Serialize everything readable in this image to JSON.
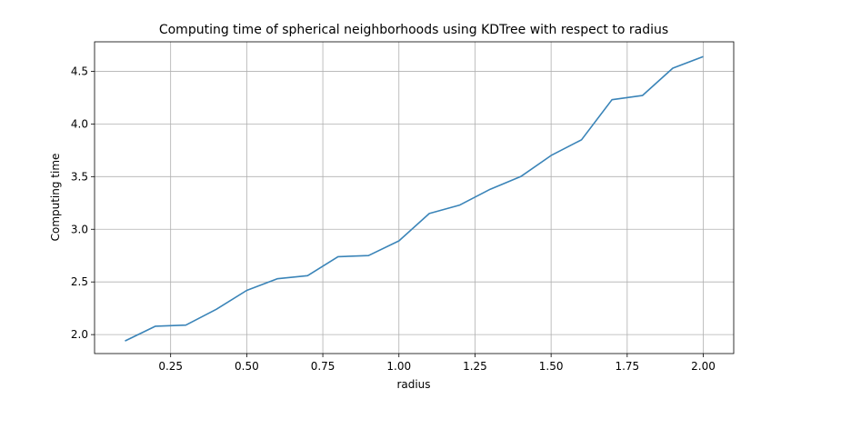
{
  "chart_data": {
    "type": "line",
    "title": "Computing time of spherical neighborhoods using KDTree with respect to radius",
    "xlabel": "radius",
    "ylabel": "Computing time",
    "xlim": [
      0.0,
      2.1
    ],
    "ylim": [
      1.82,
      4.78
    ],
    "grid": true,
    "xticks": [
      0.25,
      0.5,
      0.75,
      1.0,
      1.25,
      1.5,
      1.75,
      2.0
    ],
    "xtick_labels": [
      "0.25",
      "0.50",
      "0.75",
      "1.00",
      "1.25",
      "1.50",
      "1.75",
      "2.00"
    ],
    "yticks": [
      2.0,
      2.5,
      3.0,
      3.5,
      4.0,
      4.5
    ],
    "ytick_labels": [
      "2.0",
      "2.5",
      "3.0",
      "3.5",
      "4.0",
      "4.5"
    ],
    "line_color": "#3a84b8",
    "series": [
      {
        "x": [
          0.1,
          0.2,
          0.3,
          0.4,
          0.5,
          0.6,
          0.7,
          0.8,
          0.9,
          1.0,
          1.1,
          1.2,
          1.3,
          1.4,
          1.5,
          1.6,
          1.7,
          1.8,
          1.9,
          2.0
        ],
        "values": [
          1.94,
          2.08,
          2.09,
          2.24,
          2.42,
          2.53,
          2.56,
          2.74,
          2.75,
          2.89,
          3.15,
          3.23,
          3.38,
          3.5,
          3.7,
          3.85,
          4.23,
          4.27,
          4.53,
          4.64
        ]
      }
    ]
  }
}
